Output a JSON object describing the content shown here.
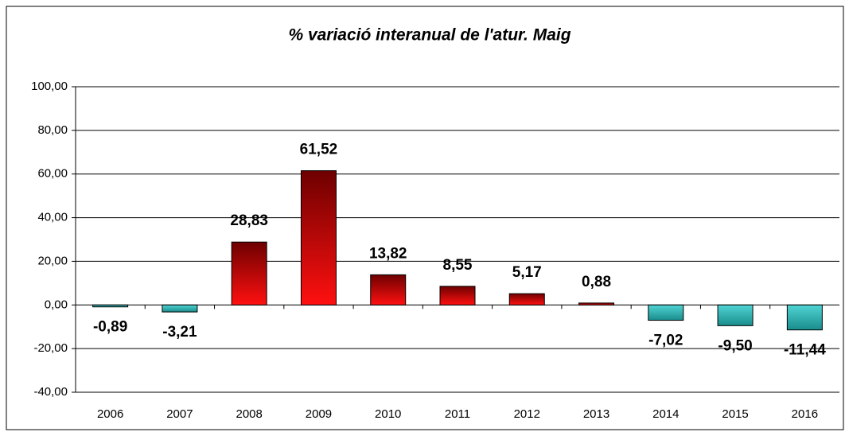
{
  "chart_data": {
    "type": "bar",
    "title": "% variació interanual de l'atur. Maig",
    "categories": [
      "2006",
      "2007",
      "2008",
      "2009",
      "2010",
      "2011",
      "2012",
      "2013",
      "2014",
      "2015",
      "2016"
    ],
    "values": [
      -0.89,
      -3.21,
      28.83,
      61.52,
      13.82,
      8.55,
      5.17,
      0.88,
      -7.02,
      -9.5,
      -11.44
    ],
    "value_labels": [
      "-0,89",
      "-3,21",
      "28,83",
      "61,52",
      "13,82",
      "8,55",
      "5,17",
      "0,88",
      "-7,02",
      "-9,50",
      "-11,44"
    ],
    "colors": {
      "positive": [
        "#6e0000",
        "#ff1010"
      ],
      "negative": [
        "#1a8c8c",
        "#50d4d4"
      ],
      "labels": "#1f8a9c",
      "title": "#1f8a9c"
    },
    "ylim": [
      -40,
      100
    ],
    "yticks": [
      {
        "value": -40,
        "label": "-40,00"
      },
      {
        "value": -20,
        "label": "-20,00"
      },
      {
        "value": 0,
        "label": "0,00"
      },
      {
        "value": 20,
        "label": "20,00"
      },
      {
        "value": 40,
        "label": "40,00"
      },
      {
        "value": 60,
        "label": "60,00"
      },
      {
        "value": 80,
        "label": "80,00"
      },
      {
        "value": 100,
        "label": "100,00"
      }
    ],
    "grid": true
  }
}
